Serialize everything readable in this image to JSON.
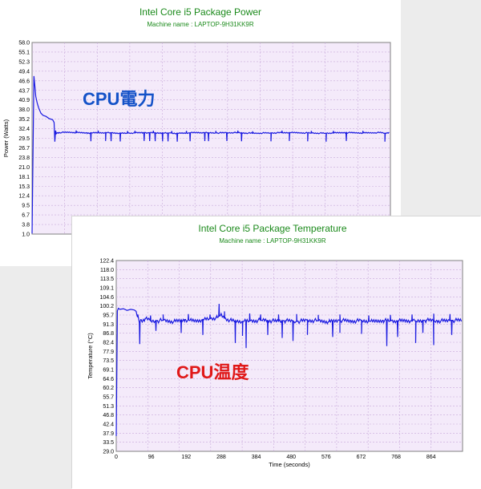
{
  "chart_data": [
    {
      "type": "line",
      "title": "Intel Core i5 Package Power",
      "subtitle": "Machine name : LAPTOP-9H31KK9R",
      "ylabel": "Power (Watts)",
      "xlabel": "",
      "ylim": [
        1.0,
        58.0
      ],
      "yticks": [
        "58.0",
        "55.1",
        "52.3",
        "49.4",
        "46.6",
        "43.7",
        "40.9",
        "38.0",
        "35.2",
        "32.4",
        "29.5",
        "26.7",
        "23.8",
        "21.0",
        "18.1",
        "15.3",
        "12.4",
        "9.5",
        "6.7",
        "3.8",
        "1.0"
      ],
      "x": [
        0,
        5,
        8,
        10,
        14,
        18,
        24,
        30,
        38,
        46,
        56,
        60,
        62,
        64,
        66,
        72,
        100,
        150,
        200,
        250,
        300,
        350,
        400,
        450,
        500,
        550,
        600,
        650,
        700,
        750,
        800,
        850,
        900,
        950,
        960,
        970
      ],
      "values": [
        1.2,
        48.0,
        44.5,
        42.0,
        40.0,
        38.5,
        37.0,
        36.3,
        36.0,
        35.4,
        35.0,
        34.2,
        28.5,
        31.8,
        31.0,
        31.2,
        31.3,
        31.1,
        31.2,
        31.0,
        31.2,
        31.1,
        31.0,
        31.2,
        31.1,
        31.2,
        31.0,
        31.1,
        31.2,
        31.1,
        31.0,
        31.2,
        31.1,
        31.2,
        31.0,
        31.2
      ],
      "dips_x": [
        160,
        200,
        215,
        240,
        305,
        320,
        335,
        355,
        370,
        395,
        430,
        470,
        480,
        530,
        570,
        650,
        700,
        750,
        800,
        855,
        960
      ],
      "spikes_x": [
        120,
        180,
        260,
        280,
        330,
        380,
        420,
        500,
        560,
        600,
        680,
        760,
        820,
        900
      ],
      "xlim": [
        0,
        975
      ],
      "grid": true
    },
    {
      "type": "line",
      "title": "Intel Core i5 Package Temperature",
      "subtitle": "Machine name : LAPTOP-9H31KK9R",
      "ylabel": "Temperature (°C)",
      "xlabel": "Time (seconds)",
      "ylim": [
        29.0,
        122.4
      ],
      "yticks": [
        "122.4",
        "118.0",
        "113.5",
        "109.1",
        "104.6",
        "100.2",
        "95.7",
        "91.3",
        "86.8",
        "82.4",
        "77.9",
        "73.5",
        "69.1",
        "64.6",
        "60.2",
        "55.7",
        "51.3",
        "46.8",
        "42.4",
        "37.9",
        "33.5",
        "29.0"
      ],
      "xticks": [
        "0",
        "96",
        "192",
        "288",
        "384",
        "480",
        "576",
        "672",
        "768",
        "864"
      ],
      "xlim": [
        0,
        960
      ],
      "x": [
        0,
        3,
        6,
        10,
        20,
        30,
        40,
        50,
        55,
        58,
        60,
        64,
        68,
        70,
        80,
        100,
        130,
        160,
        190,
        220,
        250,
        280,
        290,
        300,
        320,
        350,
        380,
        410,
        440,
        470,
        500,
        530,
        560,
        590,
        620,
        650,
        680,
        710,
        740,
        770,
        800,
        830,
        860,
        890,
        920,
        950
      ],
      "values": [
        36.5,
        97.8,
        99.0,
        98.5,
        98.8,
        98.0,
        98.5,
        98.2,
        97.5,
        95.2,
        94.8,
        92.0,
        93.5,
        93.0,
        94.0,
        92.8,
        93.2,
        92.6,
        93.5,
        93.0,
        93.8,
        94.5,
        96.0,
        94.2,
        93.0,
        92.6,
        93.0,
        93.4,
        92.8,
        93.0,
        92.6,
        93.2,
        93.0,
        92.5,
        93.2,
        92.8,
        93.0,
        92.6,
        93.1,
        92.8,
        93.0,
        92.7,
        93.2,
        92.9,
        93.0,
        93.2
      ],
      "dips_x": [
        65,
        110,
        180,
        240,
        330,
        350,
        360,
        420,
        460,
        490,
        530,
        600,
        620,
        680,
        750,
        780,
        830,
        850,
        880,
        930
      ],
      "dip_values": [
        81.5,
        88.0,
        87.0,
        86.0,
        82.0,
        85.5,
        79.5,
        86.0,
        84.5,
        83.0,
        86.0,
        85.0,
        87.0,
        86.5,
        80.5,
        85.0,
        82.0,
        87.0,
        81.0,
        86.0
      ],
      "spikes_x": [
        60,
        95,
        130,
        200,
        260,
        285,
        300,
        370,
        400,
        450,
        500,
        560,
        620,
        700,
        760,
        820,
        880,
        925
      ],
      "spike_values": [
        96.0,
        95.5,
        96.0,
        96.2,
        96.0,
        101.2,
        97.5,
        96.5,
        96.0,
        96.0,
        96.2,
        95.8,
        96.0,
        95.5,
        95.8,
        96.0,
        96.4,
        96.2
      ],
      "grid": true
    }
  ],
  "overlays": {
    "power_label": "CPU電力",
    "temp_label": "CPU温度"
  }
}
